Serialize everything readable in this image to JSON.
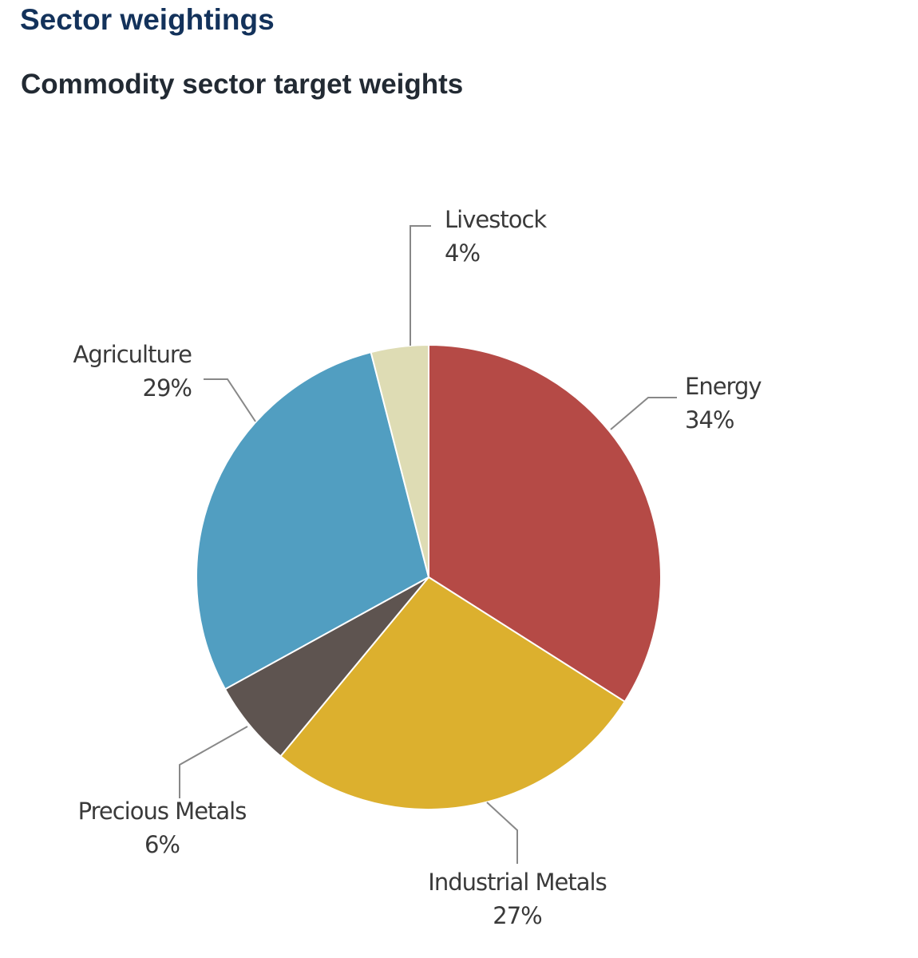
{
  "header": {
    "title": "Sector weightings",
    "subtitle": "Commodity sector target weights"
  },
  "chart_data": {
    "type": "pie",
    "title": "Sector weightings",
    "subtitle": "Commodity sector target weights",
    "start_angle": "12 o'clock",
    "direction": "clockwise",
    "slices": [
      {
        "label": "Energy",
        "value": 34,
        "value_label": "34%",
        "color": "#b54a46"
      },
      {
        "label": "Industrial Metals",
        "value": 27,
        "value_label": "27%",
        "color": "#dcb02e"
      },
      {
        "label": "Precious Metals",
        "value": 6,
        "value_label": "6%",
        "color": "#5e5450"
      },
      {
        "label": "Agriculture",
        "value": 29,
        "value_label": "29%",
        "color": "#519ec1"
      },
      {
        "label": "Livestock",
        "value": 4,
        "value_label": "4%",
        "color": "#dedcb4"
      }
    ],
    "legend": "none (data labels with leader lines)"
  }
}
